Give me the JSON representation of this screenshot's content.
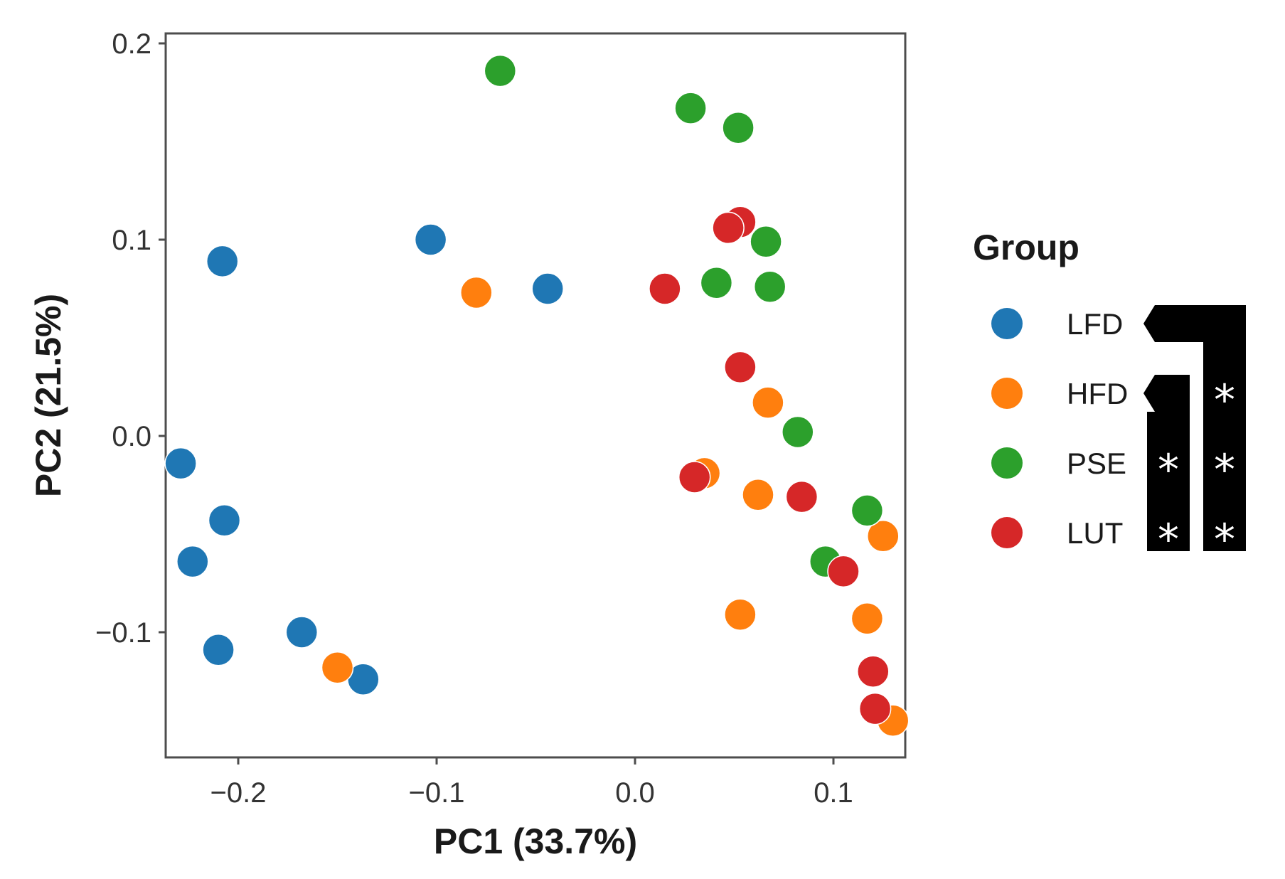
{
  "chart_data": {
    "type": "scatter",
    "title": "",
    "xlabel": "PC1 (33.7%)",
    "ylabel": "PC2 (21.5%)",
    "xlim": [
      -0.24,
      0.15
    ],
    "ylim": [
      -0.16,
      0.2
    ],
    "x_ticks": [
      -0.2,
      -0.1,
      0.0,
      0.1
    ],
    "x_tick_labels": [
      "−0.2",
      "−0.1",
      "0.0",
      "0.1"
    ],
    "y_ticks": [
      -0.1,
      0.0,
      0.1,
      0.2
    ],
    "y_tick_labels": [
      "−0.1",
      "0.0",
      "0.1",
      "0.2"
    ],
    "grid": false,
    "legend": {
      "title": "Group",
      "placement": "right"
    },
    "series": [
      {
        "name": "LFD",
        "color": "#1f77b4",
        "points": [
          {
            "x": -0.208,
            "y": 0.089
          },
          {
            "x": -0.103,
            "y": 0.1
          },
          {
            "x": -0.044,
            "y": 0.075
          },
          {
            "x": -0.229,
            "y": -0.014
          },
          {
            "x": -0.207,
            "y": -0.043
          },
          {
            "x": -0.223,
            "y": -0.064
          },
          {
            "x": -0.21,
            "y": -0.109
          },
          {
            "x": -0.168,
            "y": -0.1
          },
          {
            "x": -0.137,
            "y": -0.124
          }
        ]
      },
      {
        "name": "HFD",
        "color": "#ff7f0e",
        "points": [
          {
            "x": -0.08,
            "y": 0.073
          },
          {
            "x": 0.067,
            "y": 0.017
          },
          {
            "x": 0.035,
            "y": -0.019
          },
          {
            "x": 0.062,
            "y": -0.03
          },
          {
            "x": 0.125,
            "y": -0.051
          },
          {
            "x": 0.053,
            "y": -0.091
          },
          {
            "x": 0.117,
            "y": -0.093
          },
          {
            "x": -0.15,
            "y": -0.118
          },
          {
            "x": 0.13,
            "y": -0.145
          }
        ]
      },
      {
        "name": "PSE",
        "color": "#2ca02c",
        "points": [
          {
            "x": -0.068,
            "y": 0.186
          },
          {
            "x": 0.028,
            "y": 0.167
          },
          {
            "x": 0.052,
            "y": 0.157
          },
          {
            "x": 0.066,
            "y": 0.099
          },
          {
            "x": 0.041,
            "y": 0.078
          },
          {
            "x": 0.068,
            "y": 0.076
          },
          {
            "x": 0.082,
            "y": 0.002
          },
          {
            "x": 0.117,
            "y": -0.038
          },
          {
            "x": 0.096,
            "y": -0.064
          }
        ]
      },
      {
        "name": "LUT",
        "color": "#d62728",
        "points": [
          {
            "x": 0.053,
            "y": 0.109
          },
          {
            "x": 0.047,
            "y": 0.106
          },
          {
            "x": 0.015,
            "y": 0.075
          },
          {
            "x": 0.053,
            "y": 0.035
          },
          {
            "x": 0.03,
            "y": -0.021
          },
          {
            "x": 0.084,
            "y": -0.031
          },
          {
            "x": 0.105,
            "y": -0.069
          },
          {
            "x": 0.12,
            "y": -0.12
          },
          {
            "x": 0.121,
            "y": -0.139
          }
        ]
      }
    ],
    "significance_brackets": [
      {
        "reference": "HFD",
        "marks": [
          {
            "group": "PSE",
            "label": "*"
          },
          {
            "group": "LUT",
            "label": "*"
          }
        ]
      },
      {
        "reference": "LFD",
        "marks": [
          {
            "group": "HFD",
            "label": "*"
          },
          {
            "group": "PSE",
            "label": "*"
          },
          {
            "group": "LUT",
            "label": "*"
          }
        ]
      }
    ]
  }
}
